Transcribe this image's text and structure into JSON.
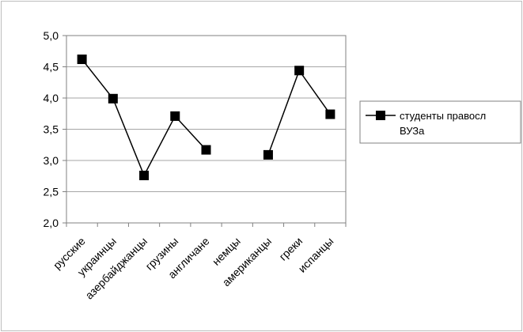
{
  "chart_data": {
    "type": "line",
    "categories": [
      "русские",
      "украинцы",
      "азербайджанцы",
      "грузины",
      "англичане",
      "немцы",
      "американцы",
      "греки",
      "испанцы"
    ],
    "series": [
      {
        "name": "студенты правосл ВУЗа",
        "name_lines": [
          "студенты правосл",
          "ВУЗа"
        ],
        "values": [
          4.62,
          3.99,
          2.76,
          3.71,
          3.17,
          null,
          3.09,
          4.44,
          3.74
        ],
        "color": "#000000",
        "marker": "square"
      }
    ],
    "title": "",
    "xlabel": "",
    "ylabel": "",
    "ylim": [
      2.0,
      5.0
    ],
    "yticks": [
      "2,0",
      "2,5",
      "3,0",
      "3,5",
      "4,0",
      "4,5",
      "5,0"
    ],
    "grid": true,
    "legend_position": "right"
  }
}
